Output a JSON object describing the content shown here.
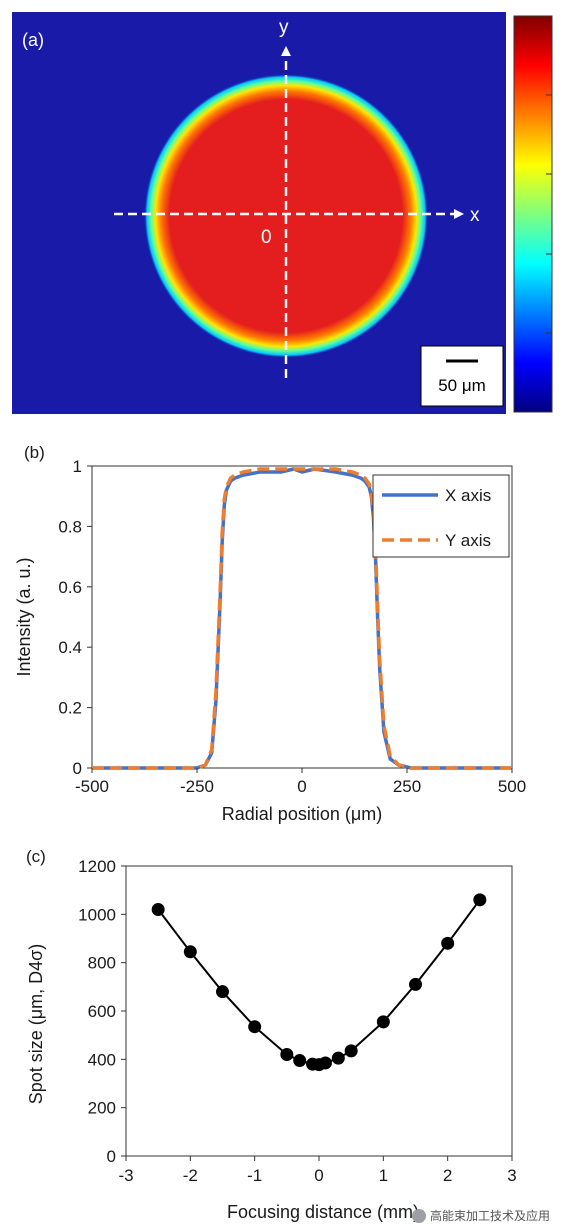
{
  "chart_data": [
    {
      "type": "heatmap",
      "panel_label": "(a)",
      "axis_x_label": "x",
      "axis_y_label": "y",
      "origin_label": "0",
      "scale_bar": {
        "label": "50 μm",
        "length_um": 50
      },
      "spot_diameter_um": 380,
      "colormap": [
        "#00007f",
        "#0000ff",
        "#007fff",
        "#00ffff",
        "#7fff7f",
        "#ffff00",
        "#ff7f00",
        "#ff0000",
        "#7f0000"
      ],
      "background_color": "#1a1aa8",
      "spot_color": "#e82020"
    },
    {
      "type": "line",
      "panel_label": "(b)",
      "title": "",
      "xlabel": "Radial position (μm)",
      "ylabel": "Intensity (a. u.)",
      "xlim": [
        -500,
        500
      ],
      "ylim": [
        0,
        1
      ],
      "xticks": [
        "-500",
        "-250",
        "0",
        "250",
        "500"
      ],
      "yticks": [
        "0",
        "0.2",
        "0.4",
        "0.6",
        "0.8",
        "1"
      ],
      "legend_position": "top-right",
      "series": [
        {
          "name": "X axis",
          "color": "#4472c4",
          "style": "solid",
          "x": [
            -500,
            -300,
            -250,
            -230,
            -215,
            -205,
            -195,
            -190,
            -185,
            -180,
            -170,
            -160,
            -140,
            -100,
            -50,
            -20,
            0,
            30,
            80,
            120,
            140,
            150,
            160,
            165,
            170,
            175,
            180,
            185,
            195,
            210,
            230,
            260,
            300,
            500
          ],
          "y": [
            0,
            0,
            0,
            0.01,
            0.05,
            0.22,
            0.55,
            0.75,
            0.87,
            0.92,
            0.95,
            0.96,
            0.97,
            0.98,
            0.98,
            0.99,
            0.98,
            0.99,
            0.98,
            0.97,
            0.96,
            0.95,
            0.93,
            0.9,
            0.83,
            0.7,
            0.5,
            0.33,
            0.12,
            0.03,
            0.01,
            0,
            0,
            0
          ]
        },
        {
          "name": "Y axis",
          "color": "#ed7d31",
          "style": "dashed",
          "x": [
            -500,
            -300,
            -250,
            -230,
            -215,
            -205,
            -195,
            -190,
            -185,
            -180,
            -170,
            -160,
            -140,
            -100,
            -50,
            -20,
            0,
            30,
            80,
            120,
            140,
            150,
            160,
            165,
            170,
            175,
            180,
            185,
            195,
            210,
            230,
            260,
            300,
            500
          ],
          "y": [
            0,
            0,
            0,
            0.01,
            0.06,
            0.25,
            0.58,
            0.78,
            0.89,
            0.93,
            0.96,
            0.97,
            0.98,
            0.99,
            0.99,
            0.99,
            0.99,
            0.99,
            0.99,
            0.98,
            0.97,
            0.96,
            0.94,
            0.91,
            0.85,
            0.73,
            0.53,
            0.36,
            0.14,
            0.04,
            0.01,
            0,
            0,
            0
          ]
        }
      ]
    },
    {
      "type": "line",
      "panel_label": "(c)",
      "title": "",
      "xlabel": "Focusing distance (mm)",
      "ylabel": "Spot size (μm, D4σ)",
      "xlim": [
        -3,
        3
      ],
      "ylim": [
        0,
        1200
      ],
      "xticks": [
        "-3",
        "-2",
        "-1",
        "0",
        "1",
        "2",
        "3"
      ],
      "yticks": [
        "0",
        "200",
        "400",
        "600",
        "800",
        "1000",
        "1200"
      ],
      "series": [
        {
          "color": "#000000",
          "style": "solid-markers",
          "x": [
            -2.5,
            -2.0,
            -1.5,
            -1.0,
            -0.5,
            -0.3,
            -0.1,
            0.0,
            0.1,
            0.3,
            0.5,
            1.0,
            1.5,
            2.0,
            2.5
          ],
          "y": [
            1020,
            845,
            680,
            535,
            420,
            395,
            380,
            378,
            385,
            405,
            435,
            555,
            710,
            880,
            1060
          ]
        }
      ]
    }
  ],
  "watermark": "高能束加工技术及应用"
}
